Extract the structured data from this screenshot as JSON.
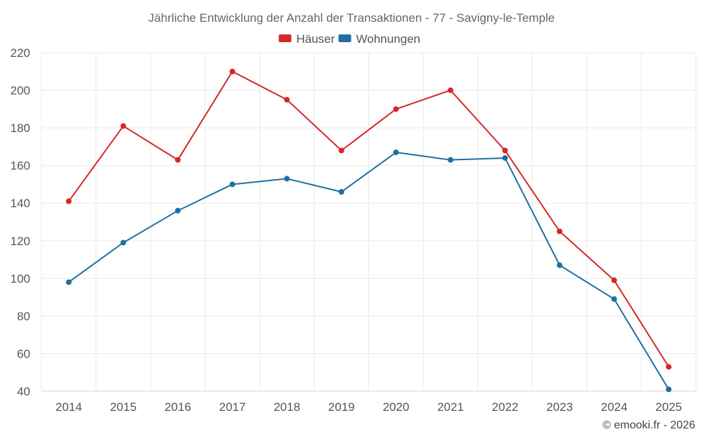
{
  "chart_data": {
    "type": "line",
    "title": "Jährliche Entwicklung der Anzahl der Transaktionen - 77 - Savigny-le-Temple",
    "categories": [
      "2014",
      "2015",
      "2016",
      "2017",
      "2018",
      "2019",
      "2020",
      "2021",
      "2022",
      "2023",
      "2024",
      "2025"
    ],
    "series": [
      {
        "name": "Häuser",
        "color": "#d62728",
        "values": [
          141,
          181,
          163,
          210,
          195,
          168,
          190,
          200,
          168,
          125,
          99,
          53
        ]
      },
      {
        "name": "Wohnungen",
        "color": "#1f6fa0",
        "values": [
          98,
          119,
          136,
          150,
          153,
          146,
          167,
          163,
          164,
          107,
          89,
          41
        ]
      }
    ],
    "ylim": [
      40,
      220
    ],
    "yticks": [
      40,
      60,
      80,
      100,
      120,
      140,
      160,
      180,
      200,
      220
    ],
    "xlabel": "",
    "ylabel": "",
    "grid": true,
    "legend_position": "top-center"
  },
  "credit": "© emooki.fr - 2026"
}
